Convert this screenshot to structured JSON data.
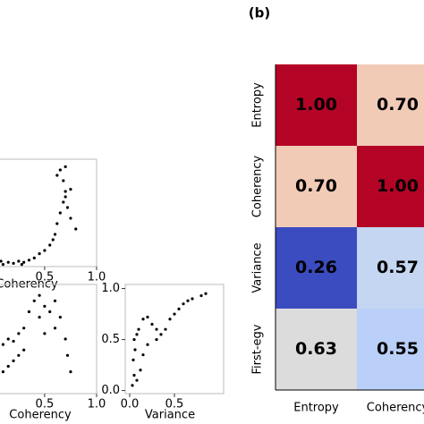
{
  "panel_label": "(b)",
  "chart_data": [
    {
      "type": "scatter",
      "color": "#000000",
      "x": [
        0.0,
        0.05,
        0.1,
        0.15,
        0.2,
        0.25,
        0.3,
        0.35,
        0.4,
        0.45,
        0.5,
        0.55,
        0.6,
        0.62,
        0.65,
        0.68,
        0.7,
        0.72,
        0.75,
        0.8,
        0.68,
        0.65,
        0.7,
        0.62,
        0.58,
        0.7,
        0.75,
        0.08,
        0.28
      ],
      "values": [
        0.02,
        0.03,
        0.02,
        0.04,
        0.03,
        0.05,
        0.04,
        0.06,
        0.08,
        0.12,
        0.15,
        0.2,
        0.3,
        0.4,
        0.5,
        0.6,
        0.7,
        0.55,
        0.45,
        0.35,
        0.8,
        0.9,
        0.93,
        0.85,
        0.25,
        0.65,
        0.72,
        0.05,
        0.02
      ],
      "xlim": [
        -0.05,
        1.0
      ],
      "ylim": [
        0,
        1
      ],
      "xticks": [
        0.5,
        {
          "value": 1,
          "label": "1.0"
        }
      ],
      "x_label": "Coherency"
    },
    {
      "type": "scatter",
      "color": "#000000",
      "x": [
        0.0,
        0.05,
        0.1,
        0.15,
        0.2,
        0.25,
        0.3,
        0.1,
        0.15,
        0.05,
        0.2,
        0.35,
        0.4,
        0.45,
        0.5,
        0.55,
        0.6,
        0.65,
        0.7,
        0.72,
        0.75,
        0.6,
        0.5,
        0.45,
        0.3,
        0.25
      ],
      "values": [
        0.35,
        0.4,
        0.45,
        0.5,
        0.48,
        0.55,
        0.6,
        0.2,
        0.25,
        0.15,
        0.3,
        0.75,
        0.85,
        0.7,
        0.8,
        0.75,
        0.85,
        0.7,
        0.5,
        0.35,
        0.2,
        0.6,
        0.55,
        0.9,
        0.4,
        0.35
      ],
      "xlim": [
        -0.05,
        1.0
      ],
      "ylim": [
        0,
        1
      ],
      "xticks": [
        0.5,
        {
          "value": 1,
          "label": "1.0"
        }
      ],
      "x_label": "Coherency"
    },
    {
      "type": "scatter",
      "color": "#000000",
      "x": [
        0.03,
        0.05,
        0.04,
        0.06,
        0.05,
        0.08,
        0.1,
        0.15,
        0.2,
        0.25,
        0.3,
        0.35,
        0.4,
        0.45,
        0.5,
        0.55,
        0.6,
        0.7,
        0.8,
        0.85,
        0.12,
        0.15,
        0.2,
        0.3,
        0.65,
        0.08
      ],
      "values": [
        0.05,
        0.15,
        0.3,
        0.4,
        0.5,
        0.55,
        0.6,
        0.7,
        0.72,
        0.65,
        0.6,
        0.55,
        0.6,
        0.7,
        0.75,
        0.8,
        0.85,
        0.9,
        0.93,
        0.95,
        0.2,
        0.35,
        0.45,
        0.5,
        0.88,
        0.1
      ],
      "xlim": [
        -0.05,
        1.05
      ],
      "ylim": [
        -0.03,
        1.04
      ],
      "xticks": [
        {
          "value": 0,
          "label": "0.0"
        },
        0.5
      ],
      "yticks": [
        {
          "value": 0,
          "label": "0.0"
        },
        0.5,
        {
          "value": 1,
          "label": "1.0"
        }
      ],
      "x_label": "Variance"
    },
    {
      "type": "heatmap",
      "x_categories": [
        "Entropy",
        "Coherency"
      ],
      "y_categories": [
        "Entropy",
        "Coherency",
        "Variance",
        "First-egv"
      ],
      "values": [
        [
          1,
          0.7
        ],
        [
          0.7,
          1
        ],
        [
          0.26,
          0.57
        ],
        [
          0.63,
          0.55
        ]
      ],
      "value_labels": [
        [
          "1.00",
          "0.70"
        ],
        [
          "0.70",
          "1.00"
        ],
        [
          "0.26",
          "0.57"
        ],
        [
          "0.63",
          "0.55"
        ]
      ],
      "colors": [
        [
          "#b40426",
          "#f2cbb7"
        ],
        [
          "#f2cbb7",
          "#b40426"
        ],
        [
          "#3b4cc0",
          "#c5d6f2"
        ],
        [
          "#dddcdc",
          "#bad0f8"
        ]
      ]
    }
  ]
}
